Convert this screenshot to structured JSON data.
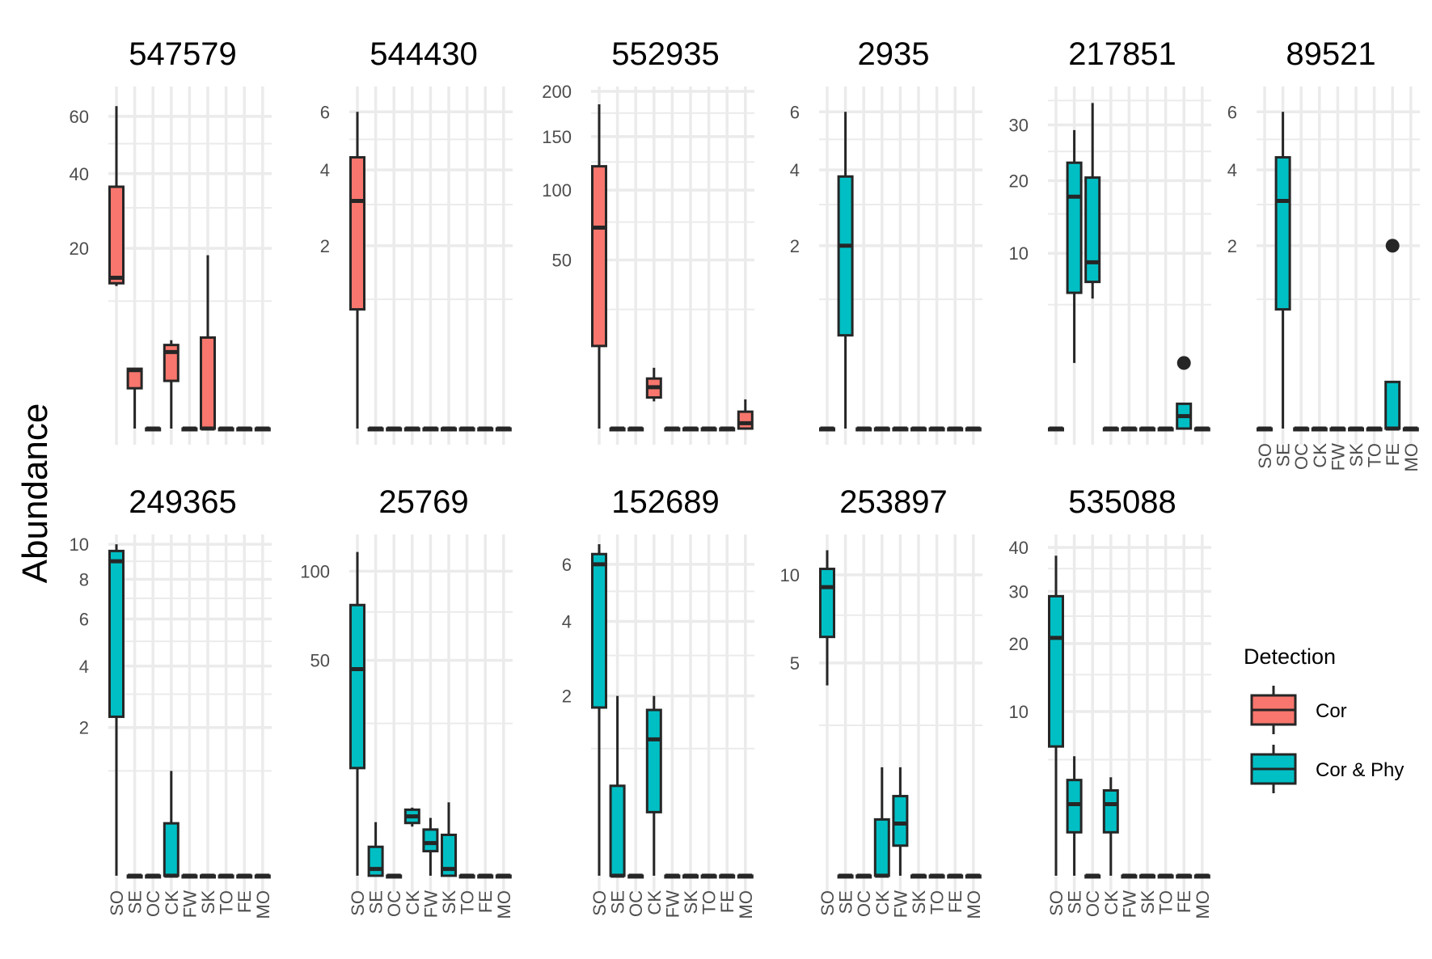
{
  "chart_data": {
    "type": "box",
    "ylabel": "Abundance",
    "y_scale": "sqrt",
    "grid": true,
    "legend": {
      "title": "Detection",
      "position": "right",
      "entries": [
        {
          "label": "Cor",
          "color": "#F8766D"
        },
        {
          "label": "Cor & Phy",
          "color": "#00BFC4"
        }
      ]
    },
    "categories": [
      "SO",
      "SE",
      "OC",
      "CK",
      "FW",
      "SK",
      "TO",
      "FE",
      "MO"
    ],
    "panels": [
      {
        "title": "547579",
        "detection": "Cor",
        "ymax": 70,
        "yticks": [
          20,
          40,
          60
        ],
        "minor_ticks": [
          10,
          30,
          50
        ],
        "boxes": [
          {
            "cat": "SO",
            "lo": 12.5,
            "q1": 13,
            "med": 14,
            "q3": 36,
            "hi": 64
          },
          {
            "cat": "SE",
            "lo": 0,
            "q1": 1.0,
            "med": 2.1,
            "q3": 2.2,
            "hi": 2.2
          },
          {
            "cat": "OC",
            "lo": 0,
            "q1": 0,
            "med": 0,
            "q3": 0,
            "hi": 0
          },
          {
            "cat": "CK",
            "lo": 0,
            "q1": 1.4,
            "med": 3.6,
            "q3": 4.3,
            "hi": 4.8
          },
          {
            "cat": "FW",
            "lo": 0,
            "q1": 0,
            "med": 0,
            "q3": 0,
            "hi": 0
          },
          {
            "cat": "SK",
            "lo": 0,
            "q1": 0,
            "med": 0,
            "q3": 5.1,
            "hi": 18.5
          },
          {
            "cat": "TO",
            "lo": 0,
            "q1": 0,
            "med": 0,
            "q3": 0,
            "hi": 0
          },
          {
            "cat": "FE",
            "lo": 0,
            "q1": 0,
            "med": 0,
            "q3": 0,
            "hi": 0
          },
          {
            "cat": "MO",
            "lo": 0,
            "q1": 0,
            "med": 0,
            "q3": 0,
            "hi": 0
          }
        ]
      },
      {
        "title": "544430",
        "detection": "Cor",
        "ymax": 6.8,
        "yticks": [
          2,
          4,
          6
        ],
        "minor_ticks": [
          1,
          3,
          5
        ],
        "boxes": [
          {
            "cat": "SO",
            "lo": 0,
            "q1": 0.85,
            "med": 3.1,
            "q3": 4.4,
            "hi": 6
          },
          {
            "cat": "SE",
            "lo": 0,
            "q1": 0,
            "med": 0,
            "q3": 0,
            "hi": 0
          },
          {
            "cat": "OC",
            "lo": 0,
            "q1": 0,
            "med": 0,
            "q3": 0,
            "hi": 0
          },
          {
            "cat": "CK",
            "lo": 0,
            "q1": 0,
            "med": 0,
            "q3": 0,
            "hi": 0
          },
          {
            "cat": "FW",
            "lo": 0,
            "q1": 0,
            "med": 0,
            "q3": 0,
            "hi": 0
          },
          {
            "cat": "SK",
            "lo": 0,
            "q1": 0,
            "med": 0,
            "q3": 0,
            "hi": 0
          },
          {
            "cat": "TO",
            "lo": 0,
            "q1": 0,
            "med": 0,
            "q3": 0,
            "hi": 0
          },
          {
            "cat": "FE",
            "lo": 0,
            "q1": 0,
            "med": 0,
            "q3": 0,
            "hi": 0
          },
          {
            "cat": "MO",
            "lo": 0,
            "q1": 0,
            "med": 0,
            "q3": 0,
            "hi": 0
          }
        ]
      },
      {
        "title": "552935",
        "detection": "Cor",
        "ymax": 200,
        "yticks": [
          50,
          100,
          150,
          200
        ],
        "minor_ticks": [
          25,
          75,
          125,
          175
        ],
        "boxes": [
          {
            "cat": "SO",
            "lo": 0,
            "q1": 12,
            "med": 71,
            "q3": 121,
            "hi": 185
          },
          {
            "cat": "SE",
            "lo": 0,
            "q1": 0,
            "med": 0,
            "q3": 0,
            "hi": 0
          },
          {
            "cat": "OC",
            "lo": 0,
            "q1": 0,
            "med": 0,
            "q3": 0,
            "hi": 0
          },
          {
            "cat": "CK",
            "lo": 1.3,
            "q1": 1.7,
            "med": 3.0,
            "q3": 4.4,
            "hi": 6.5
          },
          {
            "cat": "FW",
            "lo": 0,
            "q1": 0,
            "med": 0,
            "q3": 0,
            "hi": 0
          },
          {
            "cat": "SK",
            "lo": 0,
            "q1": 0,
            "med": 0,
            "q3": 0,
            "hi": 0
          },
          {
            "cat": "TO",
            "lo": 0,
            "q1": 0,
            "med": 0,
            "q3": 0,
            "hi": 0
          },
          {
            "cat": "FE",
            "lo": 0,
            "q1": 0,
            "med": 0,
            "q3": 0,
            "hi": 0
          },
          {
            "cat": "MO",
            "lo": 0,
            "q1": 0,
            "med": 0.05,
            "q3": 0.5,
            "hi": 1.5
          }
        ]
      },
      {
        "title": "2935",
        "detection": "Cor & Phy",
        "ymax": 6.8,
        "yticks": [
          2,
          4,
          6
        ],
        "minor_ticks": [
          1,
          3,
          5
        ],
        "boxes": [
          {
            "cat": "SO",
            "lo": 0,
            "q1": 0,
            "med": 0,
            "q3": 0,
            "hi": 0
          },
          {
            "cat": "SE",
            "lo": 0,
            "q1": 0.52,
            "med": 2.0,
            "q3": 3.8,
            "hi": 6
          },
          {
            "cat": "OC",
            "lo": 0,
            "q1": 0,
            "med": 0,
            "q3": 0,
            "hi": 0
          },
          {
            "cat": "CK",
            "lo": 0,
            "q1": 0,
            "med": 0,
            "q3": 0,
            "hi": 0
          },
          {
            "cat": "FW",
            "lo": 0,
            "q1": 0,
            "med": 0,
            "q3": 0,
            "hi": 0
          },
          {
            "cat": "SK",
            "lo": 0,
            "q1": 0,
            "med": 0,
            "q3": 0,
            "hi": 0
          },
          {
            "cat": "TO",
            "lo": 0,
            "q1": 0,
            "med": 0,
            "q3": 0,
            "hi": 0
          },
          {
            "cat": "FE",
            "lo": 0,
            "q1": 0,
            "med": 0,
            "q3": 0,
            "hi": 0
          },
          {
            "cat": "MO",
            "lo": 0,
            "q1": 0,
            "med": 0,
            "q3": 0,
            "hi": 0
          }
        ]
      },
      {
        "title": "217851",
        "detection": "Cor & Phy",
        "ymax": 37,
        "yticks": [
          10,
          20,
          30
        ],
        "minor_ticks": [
          5,
          15,
          25,
          35
        ],
        "boxes": [
          {
            "cat": "SO",
            "lo": 0,
            "q1": 0,
            "med": 0,
            "q3": 0,
            "hi": 0
          },
          {
            "cat": "SE",
            "lo": 1.4,
            "q1": 6.0,
            "med": 17.5,
            "q3": 23,
            "hi": 29
          },
          {
            "cat": "OC",
            "lo": 5.5,
            "q1": 7.0,
            "med": 9.0,
            "q3": 20.5,
            "hi": 34.5
          },
          {
            "cat": "CK",
            "lo": 0,
            "q1": 0,
            "med": 0,
            "q3": 0,
            "hi": 0
          },
          {
            "cat": "FW",
            "lo": 0,
            "q1": 0,
            "med": 0,
            "q3": 0,
            "hi": 0
          },
          {
            "cat": "SK",
            "lo": 0,
            "q1": 0,
            "med": 0,
            "q3": 0,
            "hi": 0
          },
          {
            "cat": "TO",
            "lo": 0,
            "q1": 0,
            "med": 0,
            "q3": 0,
            "hi": 0
          },
          {
            "cat": "FE",
            "lo": 0,
            "q1": 0,
            "med": 0.05,
            "q3": 0.2,
            "hi": 0.2,
            "outliers": [
              1.4
            ]
          },
          {
            "cat": "MO",
            "lo": 0,
            "q1": 0,
            "med": 0,
            "q3": 0,
            "hi": 0
          }
        ]
      },
      {
        "title": "89521",
        "detection": "Cor & Phy",
        "ymax": 6.8,
        "yticks": [
          2,
          4,
          6
        ],
        "minor_ticks": [
          1,
          3,
          5
        ],
        "boxes": [
          {
            "cat": "SO",
            "lo": 0,
            "q1": 0,
            "med": 0,
            "q3": 0,
            "hi": 0
          },
          {
            "cat": "SE",
            "lo": 0,
            "q1": 0.85,
            "med": 3.1,
            "q3": 4.4,
            "hi": 6
          },
          {
            "cat": "OC",
            "lo": 0,
            "q1": 0,
            "med": 0,
            "q3": 0,
            "hi": 0
          },
          {
            "cat": "CK",
            "lo": 0,
            "q1": 0,
            "med": 0,
            "q3": 0,
            "hi": 0
          },
          {
            "cat": "FW",
            "lo": 0,
            "q1": 0,
            "med": 0,
            "q3": 0,
            "hi": 0
          },
          {
            "cat": "SK",
            "lo": 0,
            "q1": 0,
            "med": 0,
            "q3": 0,
            "hi": 0
          },
          {
            "cat": "TO",
            "lo": 0,
            "q1": 0,
            "med": 0,
            "q3": 0,
            "hi": 0
          },
          {
            "cat": "FE",
            "lo": 0,
            "q1": 0,
            "med": 0,
            "q3": 0.13,
            "hi": 0.13,
            "outliers": [
              2
            ]
          },
          {
            "cat": "MO",
            "lo": 0,
            "q1": 0,
            "med": 0,
            "q3": 0,
            "hi": 0
          }
        ]
      },
      {
        "title": "249365",
        "detection": "Cor & Phy",
        "ymax": 10.3,
        "yticks": [
          2,
          4,
          6,
          8,
          10
        ],
        "minor_ticks": [
          1,
          3,
          5,
          7,
          9
        ],
        "boxes": [
          {
            "cat": "SO",
            "lo": 0,
            "q1": 2.3,
            "med": 9.0,
            "q3": 9.6,
            "hi": 10
          },
          {
            "cat": "SE",
            "lo": 0,
            "q1": 0,
            "med": 0,
            "q3": 0,
            "hi": 0
          },
          {
            "cat": "OC",
            "lo": 0,
            "q1": 0,
            "med": 0,
            "q3": 0,
            "hi": 0
          },
          {
            "cat": "CK",
            "lo": 0,
            "q1": 0,
            "med": 0,
            "q3": 0.25,
            "hi": 1.0
          },
          {
            "cat": "FW",
            "lo": 0,
            "q1": 0,
            "med": 0,
            "q3": 0,
            "hi": 0
          },
          {
            "cat": "SK",
            "lo": 0,
            "q1": 0,
            "med": 0,
            "q3": 0,
            "hi": 0
          },
          {
            "cat": "TO",
            "lo": 0,
            "q1": 0,
            "med": 0,
            "q3": 0,
            "hi": 0
          },
          {
            "cat": "FE",
            "lo": 0,
            "q1": 0,
            "med": 0,
            "q3": 0,
            "hi": 0
          },
          {
            "cat": "MO",
            "lo": 0,
            "q1": 0,
            "med": 0,
            "q3": 0,
            "hi": 0
          }
        ]
      },
      {
        "title": "25769",
        "detection": "Cor & Phy",
        "ymax": 122,
        "yticks": [
          50,
          100
        ],
        "minor_ticks": [
          25,
          75
        ],
        "boxes": [
          {
            "cat": "SO",
            "lo": 0,
            "q1": 12.5,
            "med": 46,
            "q3": 79,
            "hi": 113
          },
          {
            "cat": "SE",
            "lo": 0,
            "q1": 0,
            "med": 0.05,
            "q3": 0.9,
            "hi": 3.1
          },
          {
            "cat": "OC",
            "lo": 0,
            "q1": 0,
            "med": 0,
            "q3": 0,
            "hi": 0
          },
          {
            "cat": "CK",
            "lo": 2.6,
            "q1": 3.0,
            "med": 3.8,
            "q3": 4.7,
            "hi": 5.0
          },
          {
            "cat": "FW",
            "lo": 0,
            "q1": 0.65,
            "med": 1.15,
            "q3": 2.3,
            "hi": 3.6
          },
          {
            "cat": "SK",
            "lo": 0,
            "q1": 0,
            "med": 0.05,
            "q3": 1.8,
            "hi": 5.8
          },
          {
            "cat": "TO",
            "lo": 0,
            "q1": 0,
            "med": 0,
            "q3": 0,
            "hi": 0
          },
          {
            "cat": "FE",
            "lo": 0,
            "q1": 0,
            "med": 0,
            "q3": 0,
            "hi": 0
          },
          {
            "cat": "MO",
            "lo": 0,
            "q1": 0,
            "med": 0,
            "q3": 0,
            "hi": 0
          }
        ]
      },
      {
        "title": "152689",
        "detection": "Cor & Phy",
        "ymax": 7,
        "yticks": [
          2,
          4,
          6
        ],
        "minor_ticks": [
          1,
          3,
          5
        ],
        "boxes": [
          {
            "cat": "SO",
            "lo": 0,
            "q1": 1.75,
            "med": 6.0,
            "q3": 6.4,
            "hi": 6.8
          },
          {
            "cat": "SE",
            "lo": 0,
            "q1": 0,
            "med": 0,
            "q3": 0.5,
            "hi": 2.0
          },
          {
            "cat": "OC",
            "lo": 0,
            "q1": 0,
            "med": 0,
            "q3": 0,
            "hi": 0
          },
          {
            "cat": "CK",
            "lo": 0,
            "q1": 0.25,
            "med": 1.15,
            "q3": 1.7,
            "hi": 2.0
          },
          {
            "cat": "FW",
            "lo": 0,
            "q1": 0,
            "med": 0,
            "q3": 0,
            "hi": 0
          },
          {
            "cat": "SK",
            "lo": 0,
            "q1": 0,
            "med": 0,
            "q3": 0,
            "hi": 0
          },
          {
            "cat": "TO",
            "lo": 0,
            "q1": 0,
            "med": 0,
            "q3": 0,
            "hi": 0
          },
          {
            "cat": "FE",
            "lo": 0,
            "q1": 0,
            "med": 0,
            "q3": 0,
            "hi": 0
          },
          {
            "cat": "MO",
            "lo": 0,
            "q1": 0,
            "med": 0,
            "q3": 0,
            "hi": 0
          }
        ]
      },
      {
        "title": "253897",
        "detection": "Cor & Phy",
        "ymax": 12.5,
        "yticks": [
          5,
          10
        ],
        "minor_ticks": [
          2.5,
          7.5
        ],
        "boxes": [
          {
            "cat": "SO",
            "lo": 4.0,
            "q1": 6.3,
            "med": 9.2,
            "q3": 10.4,
            "hi": 11.7
          },
          {
            "cat": "SE",
            "lo": 0,
            "q1": 0,
            "med": 0,
            "q3": 0,
            "hi": 0
          },
          {
            "cat": "OC",
            "lo": 0,
            "q1": 0,
            "med": 0,
            "q3": 0,
            "hi": 0
          },
          {
            "cat": "CK",
            "lo": 0,
            "q1": 0,
            "med": 0,
            "q3": 0.35,
            "hi": 1.3
          },
          {
            "cat": "FW",
            "lo": 0,
            "q1": 0.1,
            "med": 0.3,
            "q3": 0.7,
            "hi": 1.3
          },
          {
            "cat": "SK",
            "lo": 0,
            "q1": 0,
            "med": 0,
            "q3": 0,
            "hi": 0
          },
          {
            "cat": "TO",
            "lo": 0,
            "q1": 0,
            "med": 0,
            "q3": 0,
            "hi": 0
          },
          {
            "cat": "FE",
            "lo": 0,
            "q1": 0,
            "med": 0,
            "q3": 0,
            "hi": 0
          },
          {
            "cat": "MO",
            "lo": 0,
            "q1": 0,
            "med": 0,
            "q3": 0,
            "hi": 0
          }
        ]
      },
      {
        "title": "535088",
        "detection": "Cor & Phy",
        "ymax": 42,
        "yticks": [
          10,
          20,
          30,
          40
        ],
        "minor_ticks": [
          5,
          15,
          25,
          35
        ],
        "boxes": [
          {
            "cat": "SO",
            "lo": 0,
            "q1": 6.2,
            "med": 21,
            "q3": 29,
            "hi": 38
          },
          {
            "cat": "SE",
            "lo": 0,
            "q1": 0.7,
            "med": 1.9,
            "q3": 3.4,
            "hi": 5.3
          },
          {
            "cat": "OC",
            "lo": 0,
            "q1": 0,
            "med": 0,
            "q3": 0,
            "hi": 0
          },
          {
            "cat": "CK",
            "lo": 0,
            "q1": 0.7,
            "med": 1.9,
            "q3": 2.7,
            "hi": 3.6
          },
          {
            "cat": "FW",
            "lo": 0,
            "q1": 0,
            "med": 0,
            "q3": 0,
            "hi": 0
          },
          {
            "cat": "SK",
            "lo": 0,
            "q1": 0,
            "med": 0,
            "q3": 0,
            "hi": 0
          },
          {
            "cat": "TO",
            "lo": 0,
            "q1": 0,
            "med": 0,
            "q3": 0,
            "hi": 0
          },
          {
            "cat": "FE",
            "lo": 0,
            "q1": 0,
            "med": 0,
            "q3": 0,
            "hi": 0
          },
          {
            "cat": "MO",
            "lo": 0,
            "q1": 0,
            "med": 0,
            "q3": 0,
            "hi": 0
          }
        ]
      }
    ]
  }
}
